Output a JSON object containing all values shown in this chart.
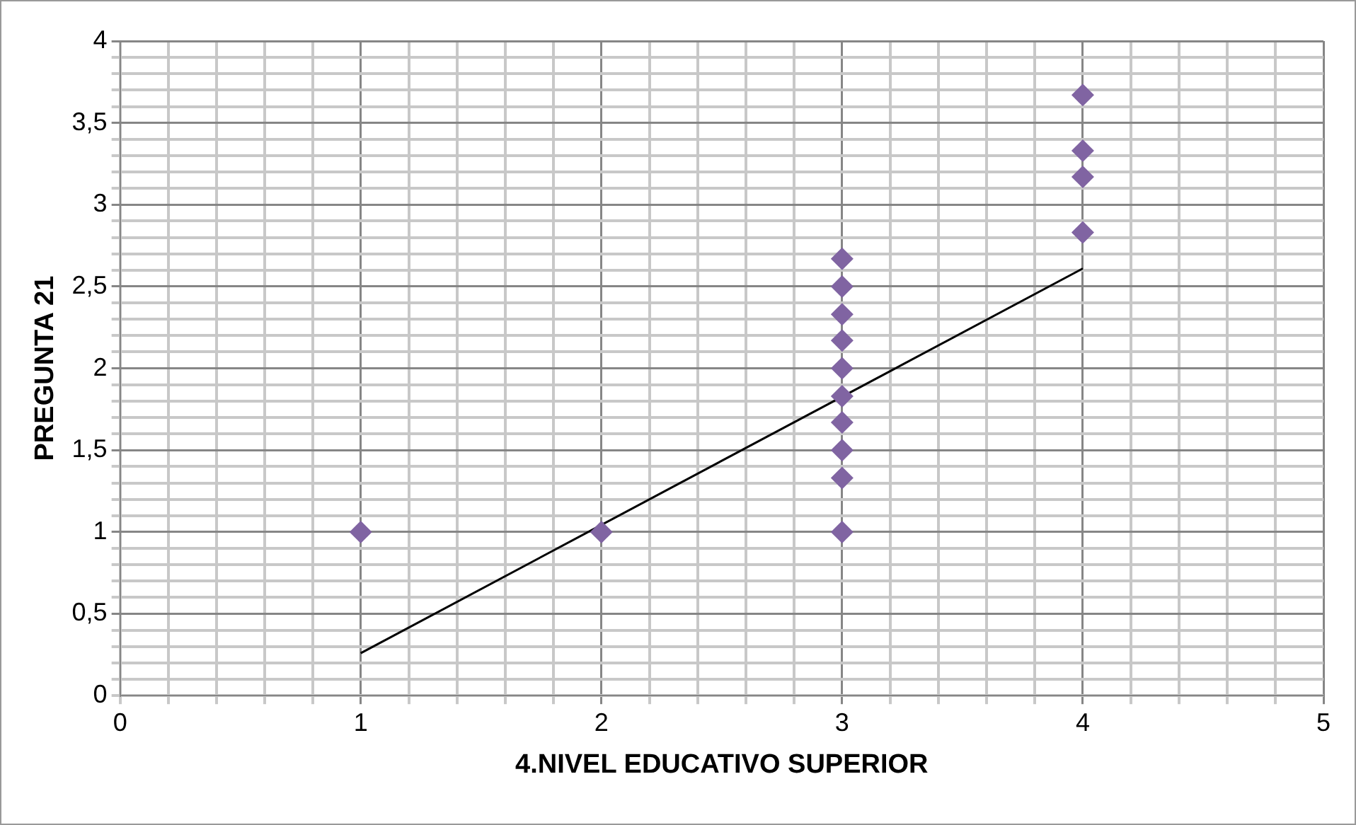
{
  "chart_data": {
    "type": "scatter",
    "xlabel": "4.NIVEL EDUCATIVO SUPERIOR",
    "ylabel": "PREGUNTA 21",
    "series": [
      {
        "type": "scatter",
        "color": "#8064a2",
        "marker": "diamond",
        "x": [
          1,
          2,
          3,
          3,
          3,
          3,
          3,
          3,
          3,
          3,
          3,
          3,
          4,
          4,
          4,
          4
        ],
        "values": [
          1,
          1,
          1,
          1.33,
          1.5,
          1.67,
          1.83,
          2,
          2.17,
          2.33,
          2.5,
          2.67,
          2.83,
          3.17,
          3.33,
          3.67
        ]
      },
      {
        "type": "line",
        "color": "#000000",
        "marker": "none",
        "x": [
          1,
          4
        ],
        "values": [
          0.26,
          2.61
        ]
      }
    ],
    "xlim": [
      0,
      5
    ],
    "ylim": [
      0,
      4
    ],
    "xticks": [
      0,
      {
        "value": 0.2,
        "label": null
      },
      {
        "value": 0.4,
        "label": null
      },
      {
        "value": 0.6,
        "label": null
      },
      {
        "value": 0.8,
        "label": null
      },
      1,
      {
        "value": 1.2,
        "label": null
      },
      {
        "value": 1.4,
        "label": null
      },
      {
        "value": 1.6,
        "label": null
      },
      {
        "value": 1.8,
        "label": null
      },
      2,
      {
        "value": 2.2,
        "label": null
      },
      {
        "value": 2.4,
        "label": null
      },
      {
        "value": 2.6,
        "label": null
      },
      {
        "value": 2.8,
        "label": null
      },
      3,
      {
        "value": 3.2,
        "label": null
      },
      {
        "value": 3.4,
        "label": null
      },
      {
        "value": 3.6,
        "label": null
      },
      {
        "value": 3.8,
        "label": null
      },
      4,
      {
        "value": 4.2,
        "label": null
      },
      {
        "value": 4.4,
        "label": null
      },
      {
        "value": 4.6,
        "label": null
      },
      {
        "value": 4.8,
        "label": null
      },
      5
    ],
    "yticks": [
      0,
      {
        "value": 0.1,
        "label": null
      },
      {
        "value": 0.2,
        "label": null
      },
      {
        "value": 0.3,
        "label": null
      },
      {
        "value": 0.4,
        "label": null
      },
      {
        "value": 0.5,
        "label": "0,5"
      },
      {
        "value": 0.6,
        "label": null
      },
      {
        "value": 0.7,
        "label": null
      },
      {
        "value": 0.8,
        "label": null
      },
      {
        "value": 0.9,
        "label": null
      },
      1,
      {
        "value": 1.1,
        "label": null
      },
      {
        "value": 1.2,
        "label": null
      },
      {
        "value": 1.3,
        "label": null
      },
      {
        "value": 1.4,
        "label": null
      },
      {
        "value": 1.5,
        "label": "1,5"
      },
      {
        "value": 1.6,
        "label": null
      },
      {
        "value": 1.7,
        "label": null
      },
      {
        "value": 1.8,
        "label": null
      },
      {
        "value": 1.9,
        "label": null
      },
      2,
      {
        "value": 2.1,
        "label": null
      },
      {
        "value": 2.2,
        "label": null
      },
      {
        "value": 2.3,
        "label": null
      },
      {
        "value": 2.4,
        "label": null
      },
      {
        "value": 2.5,
        "label": "2,5"
      },
      {
        "value": 2.6,
        "label": null
      },
      {
        "value": 2.7,
        "label": null
      },
      {
        "value": 2.8,
        "label": null
      },
      {
        "value": 2.9,
        "label": null
      },
      3,
      {
        "value": 3.1,
        "label": null
      },
      {
        "value": 3.2,
        "label": null
      },
      {
        "value": 3.3,
        "label": null
      },
      {
        "value": 3.4,
        "label": null
      },
      {
        "value": 3.5,
        "label": "3,5"
      },
      {
        "value": 3.6,
        "label": null
      },
      {
        "value": 3.7,
        "label": null
      },
      {
        "value": 3.8,
        "label": null
      },
      {
        "value": 3.9,
        "label": null
      },
      4
    ],
    "grid": true,
    "legend": false
  }
}
